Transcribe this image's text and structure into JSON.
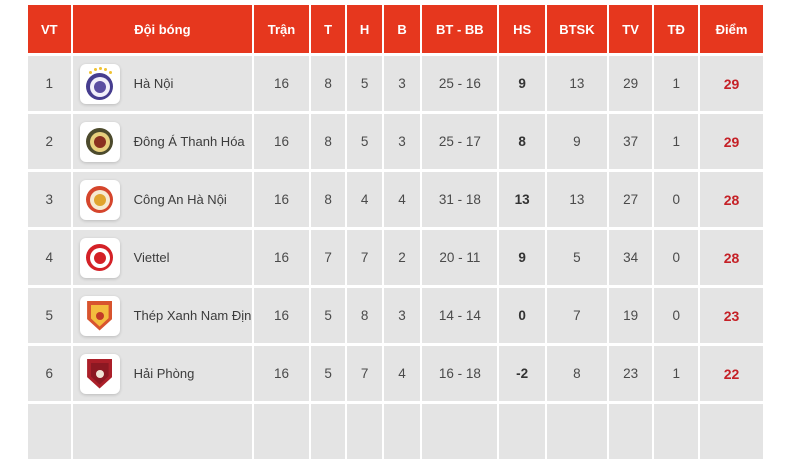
{
  "colors": {
    "header_bg": "#e6371e",
    "row_bg": "#e4e4e4",
    "points_text": "#c52026",
    "cell_text": "#4a4a4a",
    "star_gold": "#f0c232"
  },
  "table": {
    "columns": [
      {
        "key": "rank",
        "label": "VT",
        "width": 42
      },
      {
        "key": "team",
        "label": "Đội bóng",
        "width": 177
      },
      {
        "key": "played",
        "label": "Trận",
        "width": 54
      },
      {
        "key": "won",
        "label": "T",
        "width": 34
      },
      {
        "key": "drawn",
        "label": "H",
        "width": 34
      },
      {
        "key": "lost",
        "label": "B",
        "width": 36
      },
      {
        "key": "goals",
        "label": "BT - BB",
        "width": 74
      },
      {
        "key": "gd",
        "label": "HS",
        "width": 45
      },
      {
        "key": "btsk",
        "label": "BTSK",
        "width": 59
      },
      {
        "key": "tv",
        "label": "TV",
        "width": 43
      },
      {
        "key": "td",
        "label": "TĐ",
        "width": 43
      },
      {
        "key": "points",
        "label": "Điểm",
        "width": 62
      }
    ],
    "rows": [
      {
        "rank": "1",
        "team": "Hà Nội",
        "played": "16",
        "won": "8",
        "drawn": "5",
        "lost": "3",
        "goals": "25 - 16",
        "gd": "9",
        "btsk": "13",
        "tv": "29",
        "td": "1",
        "points": "29",
        "logo": {
          "shape": "circle",
          "colors": [
            "#463d8f",
            "#f1effa",
            "#5a4da1"
          ],
          "stars": true
        }
      },
      {
        "rank": "2",
        "team": "Đông Á Thanh Hóa",
        "played": "16",
        "won": "8",
        "drawn": "5",
        "lost": "3",
        "goals": "25 - 17",
        "gd": "8",
        "btsk": "9",
        "tv": "37",
        "td": "1",
        "points": "29",
        "logo": {
          "shape": "circle",
          "colors": [
            "#4c4a2c",
            "#e7cf7d",
            "#8a3020"
          ],
          "stars": false
        }
      },
      {
        "rank": "3",
        "team": "Công An Hà Nội",
        "played": "16",
        "won": "8",
        "drawn": "4",
        "lost": "4",
        "goals": "31 - 18",
        "gd": "13",
        "btsk": "13",
        "tv": "27",
        "td": "0",
        "points": "28",
        "logo": {
          "shape": "circle",
          "colors": [
            "#d5452c",
            "#f6ead0",
            "#e0a42e"
          ],
          "stars": false
        }
      },
      {
        "rank": "4",
        "team": "Viettel",
        "played": "16",
        "won": "7",
        "drawn": "7",
        "lost": "2",
        "goals": "20 - 11",
        "gd": "9",
        "btsk": "5",
        "tv": "34",
        "td": "0",
        "points": "28",
        "logo": {
          "shape": "circle",
          "colors": [
            "#d42127",
            "#ffffff",
            "#d42127"
          ],
          "stars": false
        }
      },
      {
        "rank": "5",
        "team": "Thép Xanh Nam Định",
        "played": "16",
        "won": "5",
        "drawn": "8",
        "lost": "3",
        "goals": "14 - 14",
        "gd": "0",
        "btsk": "7",
        "tv": "19",
        "td": "0",
        "points": "23",
        "logo": {
          "shape": "shield",
          "colors": [
            "#d8542e",
            "#f3bc3e",
            "#c23a28"
          ],
          "stars": false
        }
      },
      {
        "rank": "6",
        "team": "Hải Phòng",
        "played": "16",
        "won": "5",
        "drawn": "7",
        "lost": "4",
        "goals": "16 - 18",
        "gd": "-2",
        "btsk": "8",
        "tv": "23",
        "td": "1",
        "points": "22",
        "logo": {
          "shape": "shield",
          "colors": [
            "#ab1f29",
            "#8c1822",
            "#f0e4d6"
          ],
          "stars": false
        }
      }
    ]
  }
}
